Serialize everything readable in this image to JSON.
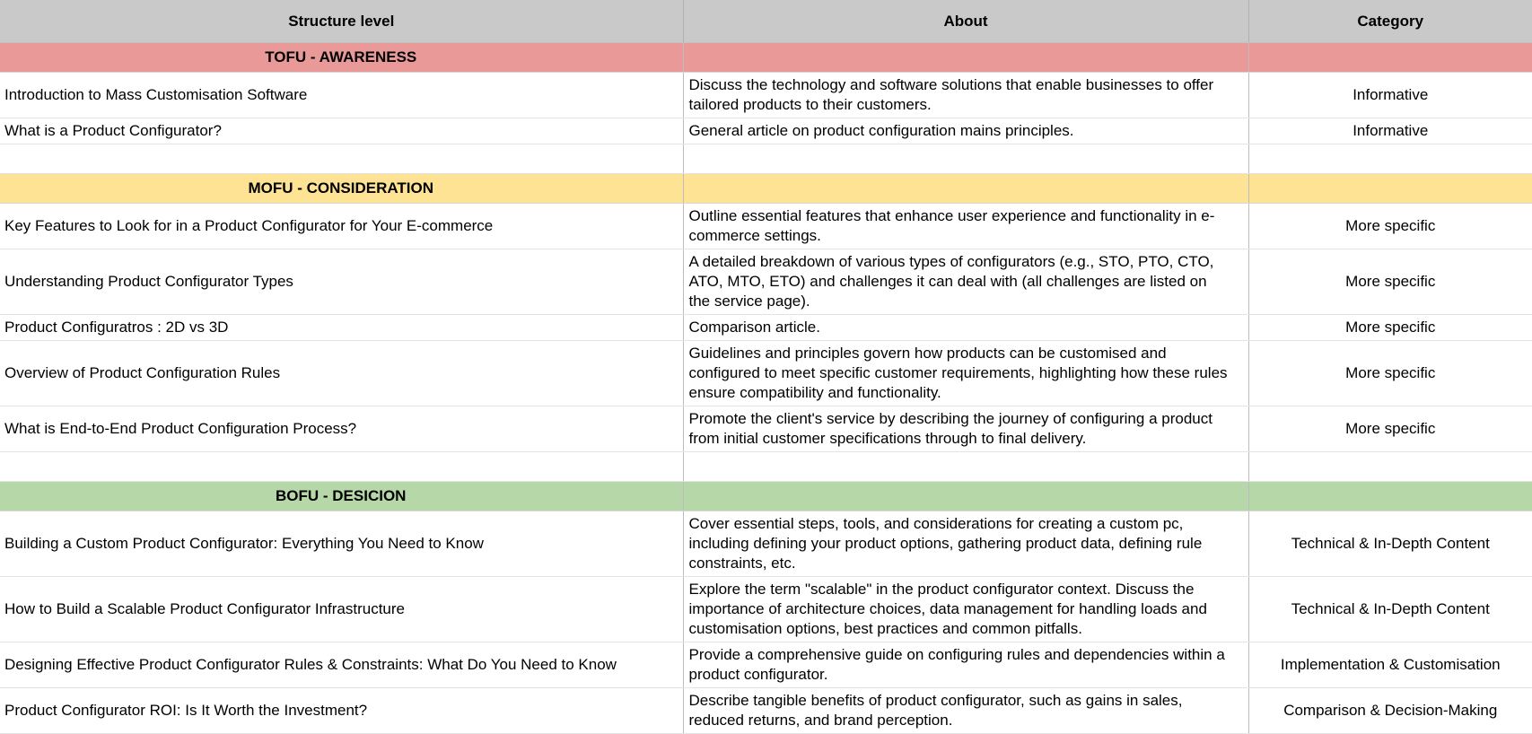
{
  "table": {
    "columns": [
      {
        "id": "structure_level",
        "label": "Structure level"
      },
      {
        "id": "about",
        "label": "About"
      },
      {
        "id": "category",
        "label": "Category"
      }
    ],
    "rows": [
      {
        "type": "section",
        "label": "TOFU - AWARENESS",
        "color": "#ea9999"
      },
      {
        "type": "item",
        "title": "Introduction to Mass Customisation Software",
        "about": "Discuss the technology and software solutions that enable businesses to offer tailored products to their customers.",
        "category": "Informative"
      },
      {
        "type": "item",
        "title": "What is a Product Configurator?",
        "about": "General article on product configuration mains principles.",
        "category": "Informative"
      },
      {
        "type": "spacer"
      },
      {
        "type": "section",
        "label": "MOFU - CONSIDERATION",
        "color": "#ffe394"
      },
      {
        "type": "item",
        "title": "Key Features to Look for in a Product Configurator for Your E-commerce",
        "about": "Outline essential features that enhance user experience and functionality in e-commerce settings.",
        "category": "More specific"
      },
      {
        "type": "item",
        "title": "Understanding Product Configurator Types",
        "about": "A detailed breakdown of various types of configurators (e.g., STO, PTO, CTO, ATO, MTO, ETO) and challenges it can deal with (all challenges are listed on the service page).",
        "category": "More specific"
      },
      {
        "type": "item",
        "title": "Product Configuratros : 2D vs 3D",
        "about": "Comparison article.",
        "category": "More specific"
      },
      {
        "type": "item",
        "title": "Overview of Product Configuration Rules",
        "about": "Guidelines and principles govern how products can be customised and configured to meet specific customer requirements, highlighting how these rules ensure compatibility and functionality.",
        "category": "More specific"
      },
      {
        "type": "item",
        "title": "What is End-to-End Product Configuration Process?",
        "about": "Promote the client's service by describing the journey of configuring a product from initial customer specifications through to final delivery.",
        "category": "More specific"
      },
      {
        "type": "spacer"
      },
      {
        "type": "section",
        "label": "BOFU - DESICION",
        "color": "#b6d7a8"
      },
      {
        "type": "item",
        "title": "Building a Custom Product Configurator: Everything You Need to Know",
        "about": "Cover essential steps, tools, and considerations for creating a custom pc, including defining your product options, gathering product data, defining rule constraints, etc.",
        "category": "Technical & In-Depth Content"
      },
      {
        "type": "item",
        "title": "How to Build a Scalable Product Configurator Infrastructure",
        "about": "Explore the term \"scalable\" in the product configurator context. Discuss the importance of architecture choices, data management for handling loads and customisation options, best practices and common pitfalls.",
        "category": "Technical & In-Depth Content"
      },
      {
        "type": "item",
        "title": "Designing Effective Product Configurator Rules & Constraints: What Do You Need to Know",
        "about": "Provide a comprehensive guide on configuring rules and dependencies within a product configurator.",
        "category": "Implementation & Customisation"
      },
      {
        "type": "item",
        "title": "Product Configurator ROI: Is It Worth the Investment?",
        "about": "Describe tangible benefits of product configurator, such as gains in sales, reduced returns, and brand perception.",
        "category": "Comparison & Decision-Making"
      }
    ]
  },
  "colors": {
    "header_bg": "#c9c9c9",
    "tofu_bg": "#ea9999",
    "mofu_bg": "#ffe394",
    "bofu_bg": "#b6d7a8"
  }
}
